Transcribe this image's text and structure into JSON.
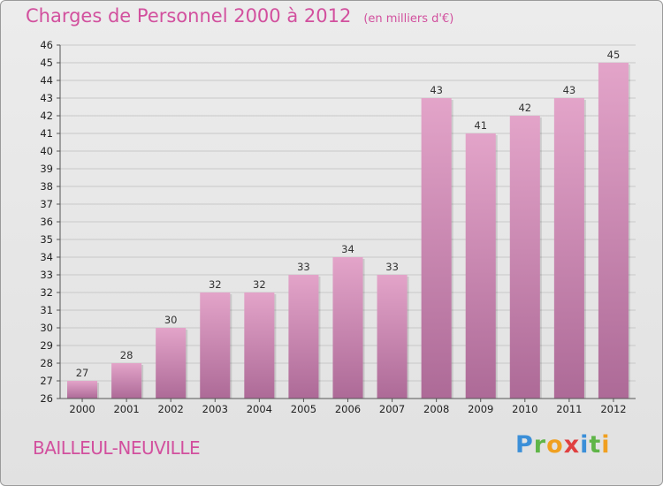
{
  "header": {
    "title": "Charges de Personnel 2000 à 2012",
    "unit": "(en milliers d'€)"
  },
  "footer": {
    "commune": "BAILLEUL-NEUVILLE",
    "logo_letters": [
      {
        "ch": "P",
        "color": "#3b8fd8"
      },
      {
        "ch": "r",
        "color": "#5fb548"
      },
      {
        "ch": "o",
        "color": "#f0a020"
      },
      {
        "ch": "x",
        "color": "#e04040"
      },
      {
        "ch": "i",
        "color": "#3b8fd8"
      },
      {
        "ch": "t",
        "color": "#5fb548"
      },
      {
        "ch": "i",
        "color": "#f0a020"
      }
    ]
  },
  "colors": {
    "accent": "#d2509e",
    "bar_top": "#e3a4c9",
    "bar_bottom": "#ad6a97",
    "grid": "#c8c8c8"
  },
  "chart_data": {
    "type": "bar",
    "title": "Charges de Personnel 2000 à 2012",
    "subtitle": "(en milliers d'€)",
    "categories": [
      "2000",
      "2001",
      "2002",
      "2003",
      "2004",
      "2005",
      "2006",
      "2007",
      "2008",
      "2009",
      "2010",
      "2011",
      "2012"
    ],
    "values": [
      27,
      28,
      30,
      32,
      32,
      33,
      34,
      33,
      43,
      41,
      42,
      43,
      45
    ],
    "data_labels": [
      "27",
      "28",
      "30",
      "32",
      "32",
      "33",
      "34",
      "33",
      "43",
      "41",
      "42",
      "43",
      "45"
    ],
    "ylim": [
      26,
      46
    ],
    "yticks": [
      26,
      27,
      28,
      29,
      30,
      31,
      32,
      33,
      34,
      35,
      36,
      37,
      38,
      39,
      40,
      41,
      42,
      43,
      44,
      45,
      46
    ],
    "grid": true,
    "xlabel": "",
    "ylabel": ""
  }
}
